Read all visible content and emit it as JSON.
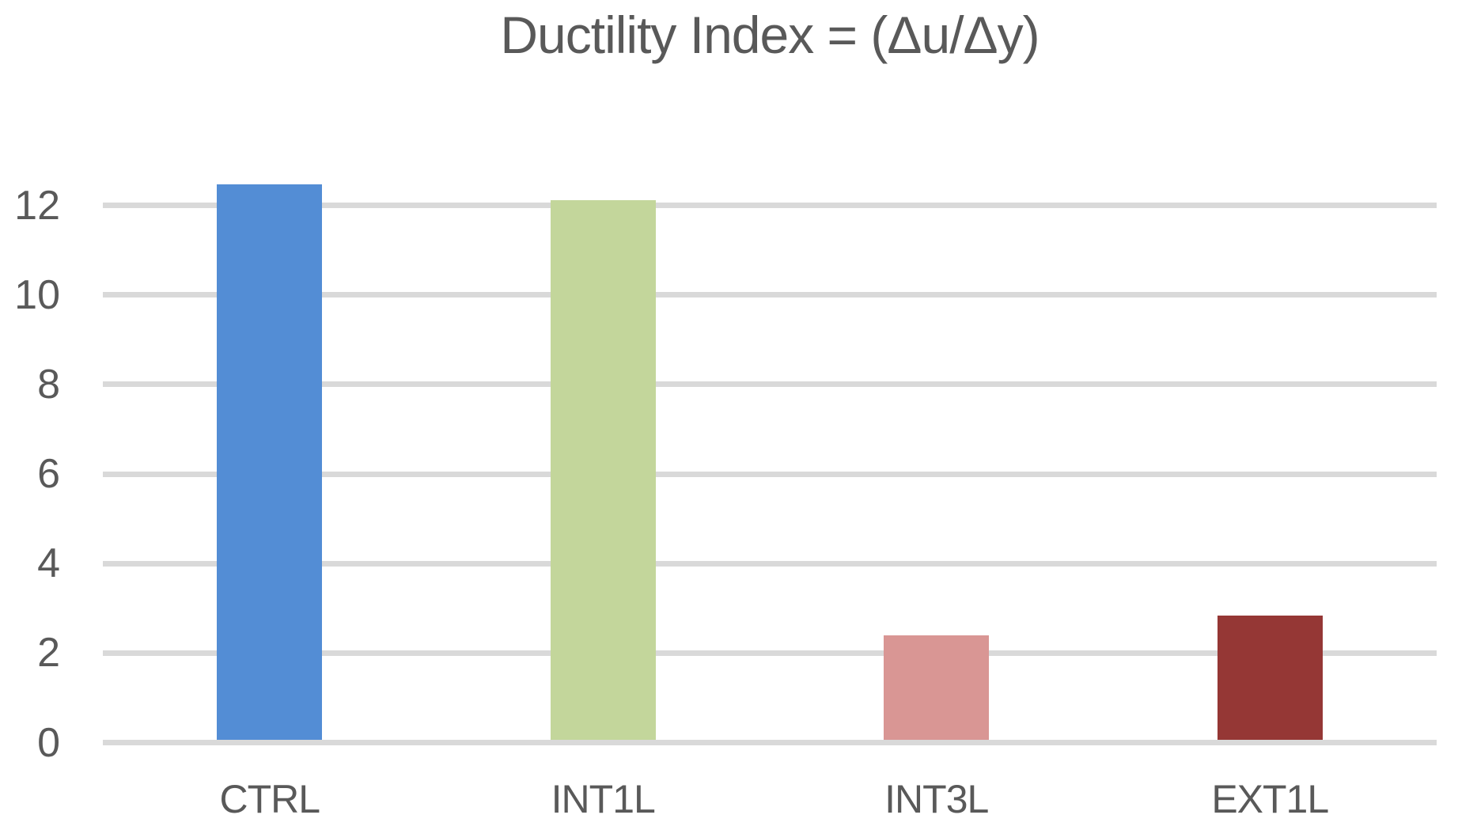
{
  "chart_data": {
    "type": "bar",
    "title": "Ductility Index = (Δu/Δy)",
    "categories": [
      "CTRL",
      "INT1L",
      "INT3L",
      "EXT1L"
    ],
    "values": [
      12.4,
      12.05,
      2.33,
      2.78
    ],
    "bar_colors": [
      "#538DD5",
      "#C3D69B",
      "#D99694",
      "#953735"
    ],
    "xlabel": "",
    "ylabel": "",
    "ylim": [
      0,
      12
    ],
    "yticks": [
      0,
      2,
      4,
      6,
      8,
      10,
      12
    ],
    "grid": true,
    "legend": false,
    "gridline_color": "#D9D9D9",
    "text_color": "#595959",
    "background_color": "#FFFFFF"
  }
}
